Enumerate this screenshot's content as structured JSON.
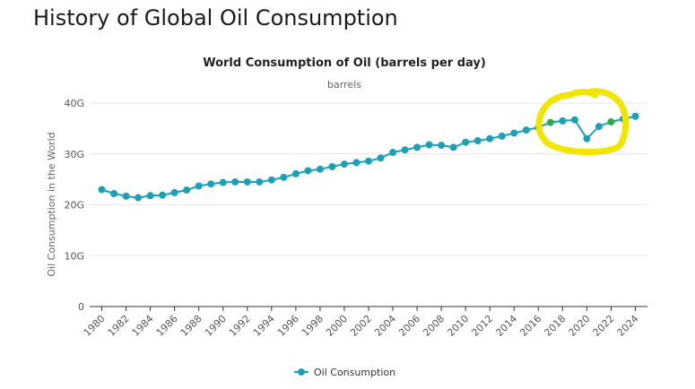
{
  "page": {
    "heading": "History of Global Oil Consumption"
  },
  "chart_data": {
    "type": "line",
    "title": "World Consumption of Oil (barrels per day)",
    "subtitle": "barrels",
    "xlabel": "",
    "ylabel": "Oil Consumption in the World",
    "ylim": [
      0,
      40000000000
    ],
    "yticks": [
      0,
      10000000000,
      20000000000,
      30000000000,
      40000000000
    ],
    "ytick_labels": [
      "0",
      "10G",
      "20G",
      "30G",
      "40G"
    ],
    "xticks": [
      1980,
      1982,
      1984,
      1986,
      1988,
      1990,
      1992,
      1994,
      1996,
      1998,
      2000,
      2002,
      2004,
      2006,
      2008,
      2010,
      2012,
      2014,
      2016,
      2018,
      2020,
      2022,
      2024
    ],
    "xlim": [
      1979,
      2025
    ],
    "grid": true,
    "legend_position": "bottom-center",
    "series": [
      {
        "name": "Oil Consumption",
        "color": "#1aa1b8",
        "x": [
          1980,
          1981,
          1982,
          1983,
          1984,
          1985,
          1986,
          1987,
          1988,
          1989,
          1990,
          1991,
          1992,
          1993,
          1994,
          1995,
          1996,
          1997,
          1998,
          1999,
          2000,
          2001,
          2002,
          2003,
          2004,
          2005,
          2006,
          2007,
          2008,
          2009,
          2010,
          2011,
          2012,
          2013,
          2014,
          2015,
          2016,
          2017,
          2018,
          2019,
          2020,
          2021,
          2022,
          2023,
          2024
        ],
        "values": [
          23000000000,
          22200000000,
          21700000000,
          21400000000,
          21800000000,
          21900000000,
          22400000000,
          22900000000,
          23700000000,
          24100000000,
          24400000000,
          24500000000,
          24500000000,
          24500000000,
          24900000000,
          25400000000,
          26100000000,
          26700000000,
          27000000000,
          27500000000,
          28000000000,
          28300000000,
          28600000000,
          29200000000,
          30300000000,
          30800000000,
          31300000000,
          31800000000,
          31700000000,
          31300000000,
          32300000000,
          32600000000,
          33000000000,
          33500000000,
          34100000000,
          34700000000,
          35200000000,
          36200000000,
          36500000000,
          36700000000,
          33000000000,
          35400000000,
          36300000000,
          36900000000,
          37400000000
        ]
      }
    ],
    "highlighted_points_years": [
      2017,
      2022
    ],
    "highlight_color": "#2ea84a",
    "annotation": {
      "shape": "hand-drawn-circle",
      "color": "#f2e600",
      "around_years": [
        2017,
        2022
      ]
    }
  }
}
